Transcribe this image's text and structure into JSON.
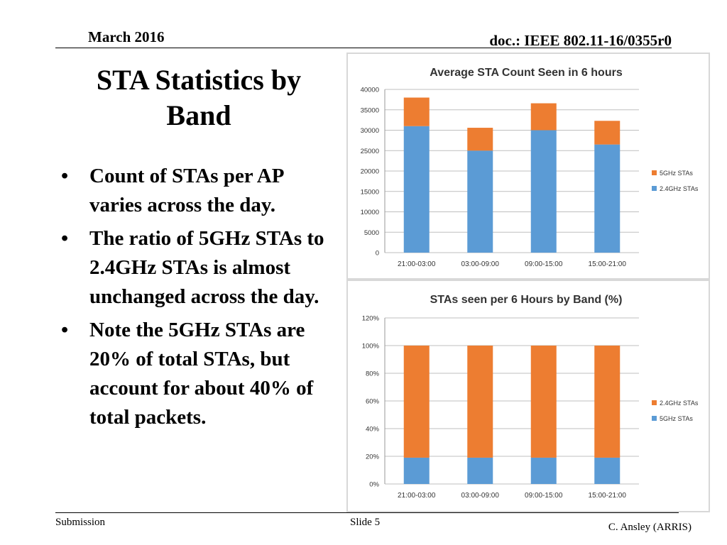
{
  "header": {
    "date": "March 2016",
    "doc": "doc.: IEEE 802.11-16/0355r0"
  },
  "slide": {
    "title": "STA Statistics by Band",
    "bullets": [
      "Count of STAs per AP varies across the day.",
      "The ratio of 5GHz STAs to 2.4GHz STAs is almost unchanged across the day.",
      "Note the 5GHz STAs are 20% of total STAs, but account for about 40% of total packets."
    ],
    "bullet_glyph": "•"
  },
  "footer": {
    "left": "Submission",
    "center": "Slide 5",
    "right": "C. Ansley (ARRIS)"
  },
  "colors": {
    "blue": "#5b9bd5",
    "orange": "#ed7d31",
    "grid": "#bfbfbf"
  },
  "chart_data": [
    {
      "type": "bar",
      "stacked": true,
      "title": "Average STA Count Seen in 6 hours",
      "categories": [
        "21:00-03:00",
        "03:00-09:00",
        "09:00-15:00",
        "15:00-21:00"
      ],
      "series": [
        {
          "name": "2.4GHz STAs",
          "values": [
            31000,
            25000,
            30000,
            26500
          ],
          "color": "#5b9bd5"
        },
        {
          "name": "5GHz STAs",
          "values": [
            7000,
            5600,
            6600,
            5800
          ],
          "color": "#ed7d31"
        }
      ],
      "ylim": [
        0,
        40000
      ],
      "yticks": [
        "0",
        "5000",
        "10000",
        "15000",
        "20000",
        "25000",
        "30000",
        "35000",
        "40000"
      ],
      "yticks_values": [
        0,
        5000,
        10000,
        15000,
        20000,
        25000,
        30000,
        35000,
        40000
      ],
      "legend_order": [
        "5GHz STAs",
        "2.4GHz STAs"
      ],
      "legend_position": "right",
      "grid": true
    },
    {
      "type": "bar",
      "stacked": true,
      "title": "STAs seen per 6 Hours by Band (%)",
      "categories": [
        "21:00-03:00",
        "03:00-09:00",
        "09:00-15:00",
        "15:00-21:00"
      ],
      "series": [
        {
          "name": "5GHz STAs",
          "values": [
            19,
            19,
            19,
            19
          ],
          "color": "#5b9bd5"
        },
        {
          "name": "2.4GHz STAs",
          "values": [
            81,
            81,
            81,
            81
          ],
          "color": "#ed7d31"
        }
      ],
      "ylim": [
        0,
        120
      ],
      "yticks": [
        "0%",
        "20%",
        "40%",
        "60%",
        "80%",
        "100%",
        "120%"
      ],
      "yticks_values": [
        0,
        20,
        40,
        60,
        80,
        100,
        120
      ],
      "legend_order": [
        "2.4GHz STAs",
        "5GHz STAs"
      ],
      "legend_position": "right",
      "grid": true
    }
  ]
}
